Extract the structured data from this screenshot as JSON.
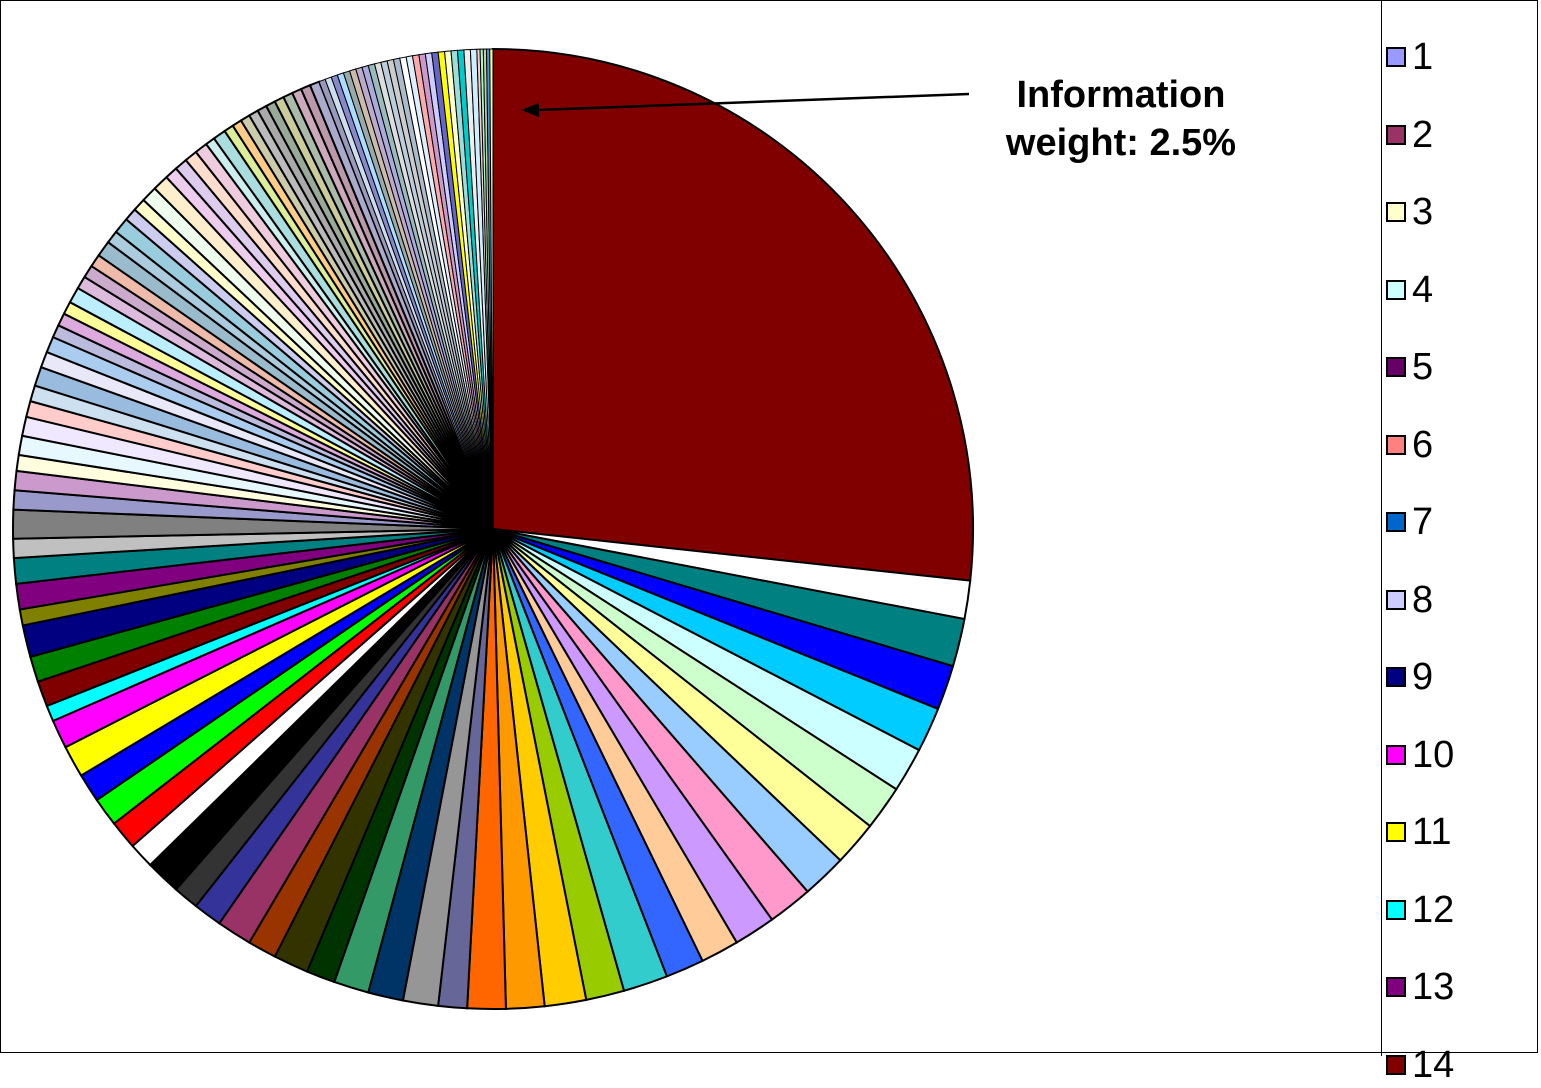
{
  "chart_data": {
    "type": "pie",
    "annotation": {
      "line1": "Information",
      "line2": "weight: 2.5%"
    },
    "legend": {
      "placement": "right",
      "items": [
        {
          "label": "1",
          "color": "#9999FF"
        },
        {
          "label": "2",
          "color": "#993366"
        },
        {
          "label": "3",
          "color": "#FFFFCC"
        },
        {
          "label": "4",
          "color": "#CCFFFF"
        },
        {
          "label": "5",
          "color": "#660066"
        },
        {
          "label": "6",
          "color": "#FF8080"
        },
        {
          "label": "7",
          "color": "#0066CC"
        },
        {
          "label": "8",
          "color": "#CCCCFF"
        },
        {
          "label": "9",
          "color": "#000080"
        },
        {
          "label": "10",
          "color": "#FF00FF"
        },
        {
          "label": "11",
          "color": "#FFFF00"
        },
        {
          "label": "12",
          "color": "#00FFFF"
        },
        {
          "label": "13",
          "color": "#800080"
        },
        {
          "label": "14",
          "color": "#800000"
        }
      ]
    },
    "slices": [
      {
        "value": 24.9,
        "color": "#800000"
      },
      {
        "value": 1.2,
        "color": "#FFFFFF"
      },
      {
        "value": 1.5,
        "color": "#008080"
      },
      {
        "value": 1.4,
        "color": "#0000FF"
      },
      {
        "value": 1.4,
        "color": "#00CCFF"
      },
      {
        "value": 1.4,
        "color": "#CCFFFF"
      },
      {
        "value": 1.4,
        "color": "#CCFFCC"
      },
      {
        "value": 1.4,
        "color": "#FFFF99"
      },
      {
        "value": 1.4,
        "color": "#99CCFF"
      },
      {
        "value": 1.4,
        "color": "#FF99CC"
      },
      {
        "value": 1.3,
        "color": "#CC99FF"
      },
      {
        "value": 1.2,
        "color": "#FFCC99"
      },
      {
        "value": 1.2,
        "color": "#3366FF"
      },
      {
        "value": 1.4,
        "color": "#33CCCC"
      },
      {
        "value": 1.2,
        "color": "#99CC00"
      },
      {
        "value": 1.3,
        "color": "#FFCC00"
      },
      {
        "value": 1.2,
        "color": "#FF9900"
      },
      {
        "value": 1.2,
        "color": "#FF6600"
      },
      {
        "value": 0.9,
        "color": "#666699"
      },
      {
        "value": 1.1,
        "color": "#969696"
      },
      {
        "value": 1.1,
        "color": "#003366"
      },
      {
        "value": 1.1,
        "color": "#339966"
      },
      {
        "value": 0.9,
        "color": "#003300"
      },
      {
        "value": 1.1,
        "color": "#333300"
      },
      {
        "value": 0.9,
        "color": "#993300"
      },
      {
        "value": 1.1,
        "color": "#993366"
      },
      {
        "value": 0.9,
        "color": "#333399"
      },
      {
        "value": 0.8,
        "color": "#333333"
      },
      {
        "value": 1.1,
        "color": "#000000"
      },
      {
        "value": 0.8,
        "color": "#FFFFFF"
      },
      {
        "value": 0.9,
        "color": "#FF0000"
      },
      {
        "value": 0.9,
        "color": "#00FF00"
      },
      {
        "value": 0.9,
        "color": "#0000FF"
      },
      {
        "value": 1.0,
        "color": "#FFFF00"
      },
      {
        "value": 0.9,
        "color": "#FF00FF"
      },
      {
        "value": 0.5,
        "color": "#00FFFF"
      },
      {
        "value": 0.8,
        "color": "#800000"
      },
      {
        "value": 0.8,
        "color": "#008000"
      },
      {
        "value": 1.0,
        "color": "#000080"
      },
      {
        "value": 0.5,
        "color": "#808000"
      },
      {
        "value": 0.8,
        "color": "#800080"
      },
      {
        "value": 0.8,
        "color": "#008080"
      },
      {
        "value": 0.6,
        "color": "#C0C0C0"
      },
      {
        "value": 0.9,
        "color": "#808080"
      },
      {
        "value": 0.6,
        "color": "#9999CC"
      },
      {
        "value": 0.6,
        "color": "#CC99CC"
      },
      {
        "value": 0.5,
        "color": "#FFFFE0"
      },
      {
        "value": 0.6,
        "color": "#E8F8FF"
      },
      {
        "value": 0.6,
        "color": "#F0E8FF"
      },
      {
        "value": 0.5,
        "color": "#FFCCCC"
      },
      {
        "value": 0.5,
        "color": "#CCE0F0"
      },
      {
        "value": 0.6,
        "color": "#99BBDD"
      },
      {
        "value": 0.5,
        "color": "#E8E8F8"
      },
      {
        "value": 0.5,
        "color": "#AACCEE"
      },
      {
        "value": 0.4,
        "color": "#BBBBDD"
      },
      {
        "value": 0.4,
        "color": "#DDAADD"
      },
      {
        "value": 0.4,
        "color": "#FFFF99"
      },
      {
        "value": 0.5,
        "color": "#BBEEFF"
      },
      {
        "value": 0.4,
        "color": "#DDBBDD"
      },
      {
        "value": 0.4,
        "color": "#CCAACC"
      },
      {
        "value": 0.4,
        "color": "#EEBBAA"
      },
      {
        "value": 0.5,
        "color": "#99BBCC"
      },
      {
        "value": 0.4,
        "color": "#AACCDD"
      },
      {
        "value": 0.5,
        "color": "#99CCDD"
      },
      {
        "value": 0.4,
        "color": "#CCCCEE"
      },
      {
        "value": 0.4,
        "color": "#FFFFCC"
      },
      {
        "value": 0.5,
        "color": "#EEFFEE"
      },
      {
        "value": 0.5,
        "color": "#FFEECC"
      },
      {
        "value": 0.4,
        "color": "#EECCEE"
      },
      {
        "value": 0.4,
        "color": "#DDCCEE"
      },
      {
        "value": 0.4,
        "color": "#FFDDCC"
      },
      {
        "value": 0.4,
        "color": "#EECCDD"
      },
      {
        "value": 0.3,
        "color": "#CCEEEE"
      },
      {
        "value": 0.4,
        "color": "#AADDDD"
      },
      {
        "value": 0.3,
        "color": "#DDEE99"
      },
      {
        "value": 0.3,
        "color": "#FFCC88"
      },
      {
        "value": 0.3,
        "color": "#CCCCAA"
      },
      {
        "value": 0.3,
        "color": "#BBBBBB"
      },
      {
        "value": 0.3,
        "color": "#AAAAAA"
      },
      {
        "value": 0.3,
        "color": "#99AA99"
      },
      {
        "value": 0.3,
        "color": "#CCCC99"
      },
      {
        "value": 0.3,
        "color": "#AABBAA"
      },
      {
        "value": 0.3,
        "color": "#CCAABB"
      },
      {
        "value": 0.3,
        "color": "#BB99AA"
      },
      {
        "value": 0.3,
        "color": "#AAAACC"
      },
      {
        "value": 0.2,
        "color": "#9999BB"
      },
      {
        "value": 0.2,
        "color": "#CCDDEE"
      },
      {
        "value": 0.2,
        "color": "#8888CC"
      },
      {
        "value": 0.2,
        "color": "#AADDFF"
      },
      {
        "value": 0.2,
        "color": "#99AAAA"
      },
      {
        "value": 0.2,
        "color": "#CCBBAA"
      },
      {
        "value": 0.2,
        "color": "#BBAACC"
      },
      {
        "value": 0.2,
        "color": "#AAAADD"
      },
      {
        "value": 0.2,
        "color": "#99BBBB"
      },
      {
        "value": 0.2,
        "color": "#DDDDDD"
      },
      {
        "value": 0.2,
        "color": "#BBCCDD"
      },
      {
        "value": 0.2,
        "color": "#CCCCCC"
      },
      {
        "value": 0.2,
        "color": "#AABBCC"
      },
      {
        "value": 0.2,
        "color": "#FFFFFF"
      },
      {
        "value": 0.2,
        "color": "#DDEEFF"
      },
      {
        "value": 0.2,
        "color": "#FFAAAA"
      },
      {
        "value": 0.2,
        "color": "#CC99CC"
      },
      {
        "value": 0.2,
        "color": "#CCCCFF"
      },
      {
        "value": 0.2,
        "color": "#6666CC"
      },
      {
        "value": 0.2,
        "color": "#FFFF00"
      },
      {
        "value": 0.2,
        "color": "#FFFFCC"
      },
      {
        "value": 0.2,
        "color": "#99DDDD"
      },
      {
        "value": 0.2,
        "color": "#00CCCC"
      },
      {
        "value": 0.2,
        "color": "#EEEEEE"
      },
      {
        "value": 0.2,
        "color": "#CCEEFF"
      },
      {
        "value": 0.1,
        "color": "#FFCCCC"
      },
      {
        "value": 0.1,
        "color": "#99FFCC"
      },
      {
        "value": 0.1,
        "color": "#CCCC99"
      },
      {
        "value": 0.1,
        "color": "#3399FF"
      },
      {
        "value": 0.1,
        "color": "#FFFF66"
      }
    ]
  }
}
